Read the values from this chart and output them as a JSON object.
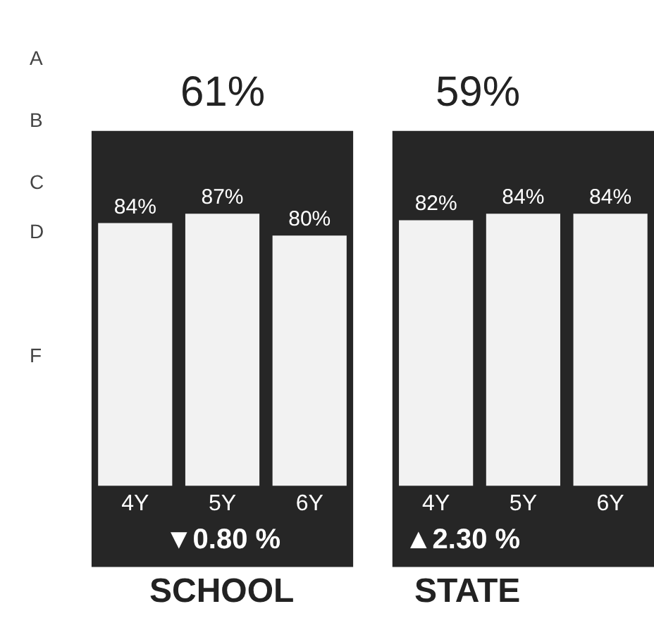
{
  "chart_data": [
    {
      "type": "bar",
      "title": "61%",
      "xlabel": "SCHOOL",
      "categories": [
        "4Y",
        "5Y",
        "6Y"
      ],
      "values": [
        84,
        87,
        80
      ],
      "value_labels": [
        "84%",
        "87%",
        "80%"
      ],
      "color": "#f2f2f2",
      "tick_labels": "x",
      "grid": false,
      "annotations": [
        "▼0.80 %",
        "A",
        "B",
        "C",
        "D",
        "F"
      ]
    },
    {
      "type": "bar",
      "title": "59%",
      "xlabel": "STATE",
      "categories": [
        "4Y",
        "5Y",
        "6Y"
      ],
      "values": [
        82,
        84,
        84
      ],
      "value_labels": [
        "82%",
        "84%",
        "84%"
      ],
      "color": "#f2f2f2",
      "tick_labels": "x",
      "grid": false,
      "annotations": [
        "▲2.30 %"
      ]
    }
  ]
}
